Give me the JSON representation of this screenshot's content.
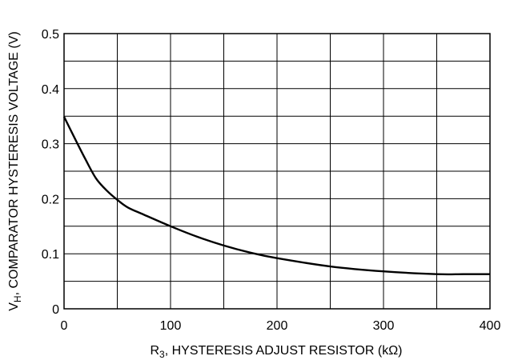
{
  "chart_data": {
    "type": "line",
    "title": "",
    "xlabel_parts": {
      "main": "R",
      "sub": "3",
      "rest": ", HYSTERESIS ADJUST RESISTOR (kΩ)"
    },
    "ylabel_parts": {
      "main": "V",
      "sub": "H",
      "rest": ", COMPARATOR HYSTERESIS VOLTAGE (V)"
    },
    "xlim": [
      0,
      400
    ],
    "ylim": [
      0,
      0.5
    ],
    "x_ticks": [
      0,
      100,
      200,
      300,
      400
    ],
    "x_tick_labels": [
      "0",
      "100",
      "200",
      "300",
      "400"
    ],
    "y_ticks": [
      0,
      0.1,
      0.2,
      0.3,
      0.4,
      0.5
    ],
    "y_tick_labels": [
      "0",
      "0.1",
      "0.2",
      "0.3",
      "0.4",
      "0.5"
    ],
    "grid": true,
    "grid_x_step": 50,
    "grid_y_step": 0.05,
    "series": [
      {
        "x": [
          0,
          10,
          20,
          30,
          40,
          50,
          60,
          75,
          100,
          125,
          150,
          175,
          200,
          250,
          300,
          350,
          375,
          400
        ],
        "values": [
          0.349,
          0.31,
          0.272,
          0.237,
          0.215,
          0.198,
          0.184,
          0.171,
          0.15,
          0.131,
          0.115,
          0.102,
          0.092,
          0.077,
          0.068,
          0.063,
          0.063,
          0.063
        ]
      }
    ]
  }
}
